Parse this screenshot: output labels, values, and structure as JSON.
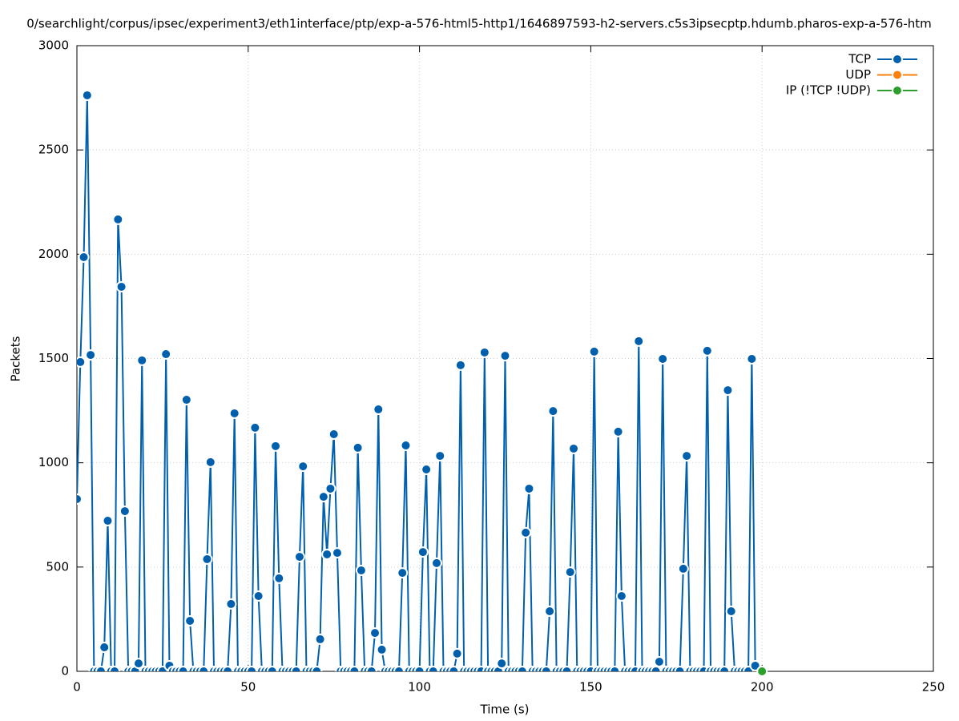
{
  "chart_data": {
    "type": "line",
    "title": "0/searchlight/corpus/ipsec/experiment3/eth1interface/ptp/exp-a-576-html5-http1/1646897593-h2-servers.c5s3ipsecptp.hdumb.pharos-exp-a-576-htm",
    "xlabel": "Time (s)",
    "ylabel": "Packets",
    "xlim": [
      0,
      250
    ],
    "xticks": [
      0,
      50,
      100,
      150,
      200,
      250
    ],
    "ylim": [
      0,
      3000
    ],
    "yticks": [
      0,
      500,
      1000,
      1500,
      2000,
      2500,
      3000
    ],
    "grid": true,
    "legend": "top-right",
    "series": [
      {
        "name": "TCP",
        "color": "#0060ad",
        "x": [
          0,
          1,
          2,
          3,
          4,
          5,
          6,
          7,
          8,
          9,
          10,
          11,
          12,
          13,
          14,
          15,
          16,
          17,
          18,
          19,
          20,
          21,
          22,
          23,
          24,
          25,
          26,
          27,
          28,
          29,
          30,
          31,
          32,
          33,
          34,
          35,
          36,
          37,
          38,
          39,
          40,
          41,
          42,
          43,
          44,
          45,
          46,
          47,
          48,
          49,
          50,
          51,
          52,
          53,
          54,
          55,
          56,
          57,
          58,
          59,
          60,
          61,
          62,
          63,
          64,
          65,
          66,
          67,
          68,
          69,
          70,
          71,
          72,
          73,
          74,
          75,
          76,
          77,
          78,
          79,
          80,
          81,
          82,
          83,
          84,
          85,
          86,
          87,
          88,
          89,
          90,
          91,
          92,
          93,
          94,
          95,
          96,
          97,
          98,
          99,
          100,
          101,
          102,
          103,
          104,
          105,
          106,
          107,
          108,
          109,
          110,
          111,
          112,
          113,
          114,
          115,
          116,
          117,
          118,
          119,
          120,
          121,
          122,
          123,
          124,
          125,
          126,
          127,
          128,
          129,
          130,
          131,
          132,
          133,
          134,
          135,
          136,
          137,
          138,
          139,
          140,
          141,
          142,
          143,
          144,
          145,
          146,
          147,
          148,
          149,
          150,
          151,
          152,
          153,
          154,
          155,
          156,
          157,
          158,
          159,
          160,
          161,
          162,
          163,
          164,
          165,
          166,
          167,
          168,
          169,
          170,
          171,
          172,
          173,
          174,
          175,
          176,
          177,
          178,
          179,
          180,
          181,
          182,
          183,
          184,
          185,
          186,
          187,
          188,
          189,
          190,
          191,
          192,
          193,
          194,
          195,
          196,
          197,
          198
        ],
        "values": [
          826,
          1483,
          1986,
          2762,
          1517,
          0,
          0,
          0,
          115,
          722,
          0,
          0,
          2167,
          1844,
          768,
          0,
          0,
          0,
          38,
          1491,
          0,
          0,
          0,
          0,
          0,
          0,
          1521,
          27,
          0,
          0,
          0,
          0,
          1302,
          242,
          0,
          0,
          0,
          0,
          538,
          1003,
          0,
          0,
          0,
          0,
          0,
          323,
          1237,
          0,
          0,
          0,
          0,
          0,
          1168,
          361,
          0,
          0,
          0,
          0,
          1080,
          446,
          0,
          0,
          0,
          0,
          0,
          549,
          983,
          0,
          0,
          0,
          0,
          154,
          837,
          561,
          876,
          1137,
          568,
          0,
          0,
          0,
          0,
          0,
          1072,
          484,
          0,
          0,
          0,
          184,
          1256,
          104,
          0,
          0,
          0,
          0,
          0,
          472,
          1083,
          0,
          0,
          0,
          0,
          572,
          968,
          0,
          0,
          519,
          1033,
          0,
          0,
          0,
          0,
          85,
          1468,
          0,
          0,
          0,
          0,
          0,
          0,
          1529,
          0,
          0,
          0,
          0,
          38,
          1513,
          0,
          0,
          0,
          0,
          0,
          665,
          876,
          0,
          0,
          0,
          0,
          0,
          288,
          1248,
          0,
          0,
          0,
          0,
          476,
          1068,
          0,
          0,
          0,
          0,
          0,
          1533,
          0,
          0,
          0,
          0,
          0,
          0,
          1149,
          361,
          0,
          0,
          0,
          0,
          1583,
          0,
          0,
          0,
          0,
          0,
          46,
          1498,
          0,
          0,
          0,
          0,
          0,
          492,
          1033,
          0,
          0,
          0,
          0,
          0,
          1537,
          0,
          0,
          0,
          0,
          0,
          1348,
          288,
          0,
          0,
          0,
          0,
          0,
          1498,
          27
        ]
      },
      {
        "name": "UDP",
        "color": "#ff7f0e",
        "x": [],
        "values": []
      },
      {
        "name": "IP (!TCP  !UDP)",
        "color": "#2ca02c",
        "x": [
          200
        ],
        "values": [
          0
        ]
      }
    ]
  }
}
